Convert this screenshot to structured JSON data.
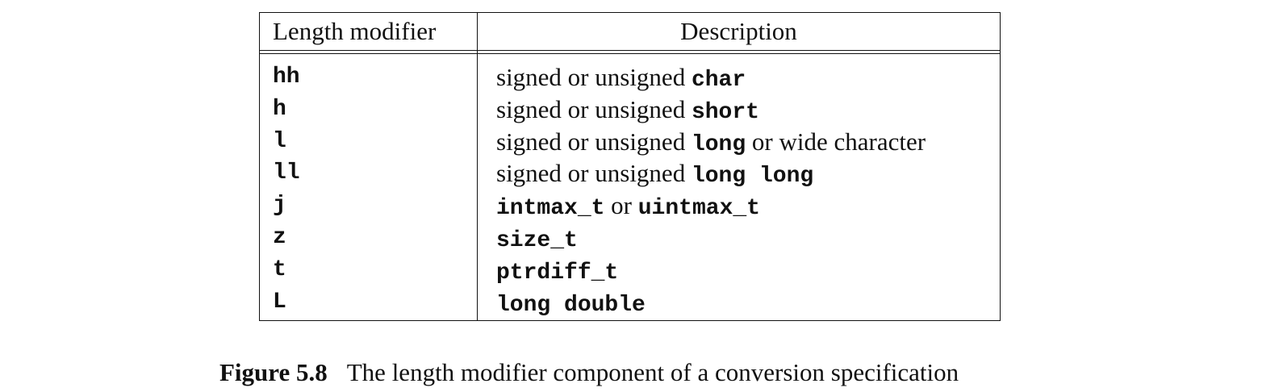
{
  "table": {
    "headers": {
      "modifier": "Length modifier",
      "description": "Description"
    },
    "rows": [
      {
        "modifier": "hh",
        "description": [
          {
            "text": "signed or unsigned ",
            "code": false
          },
          {
            "text": "char",
            "code": true
          }
        ]
      },
      {
        "modifier": "h",
        "description": [
          {
            "text": "signed or unsigned ",
            "code": false
          },
          {
            "text": "short",
            "code": true
          }
        ]
      },
      {
        "modifier": "l",
        "description": [
          {
            "text": "signed or unsigned ",
            "code": false
          },
          {
            "text": "long",
            "code": true
          },
          {
            "text": " or wide character",
            "code": false
          }
        ]
      },
      {
        "modifier": "ll",
        "description": [
          {
            "text": "signed or unsigned ",
            "code": false
          },
          {
            "text": "long long",
            "code": true
          }
        ]
      },
      {
        "modifier": "j",
        "description": [
          {
            "text": "intmax_t",
            "code": true
          },
          {
            "text": " or ",
            "code": false
          },
          {
            "text": "uintmax_t",
            "code": true
          }
        ]
      },
      {
        "modifier": "z",
        "description": [
          {
            "text": "size_t",
            "code": true
          }
        ]
      },
      {
        "modifier": "t",
        "description": [
          {
            "text": "ptrdiff_t",
            "code": true
          }
        ]
      },
      {
        "modifier": "L",
        "description": [
          {
            "text": "long double",
            "code": true
          }
        ]
      }
    ]
  },
  "caption": {
    "label": "Figure 5.8",
    "text": "The length modifier component of a conversion specification"
  }
}
